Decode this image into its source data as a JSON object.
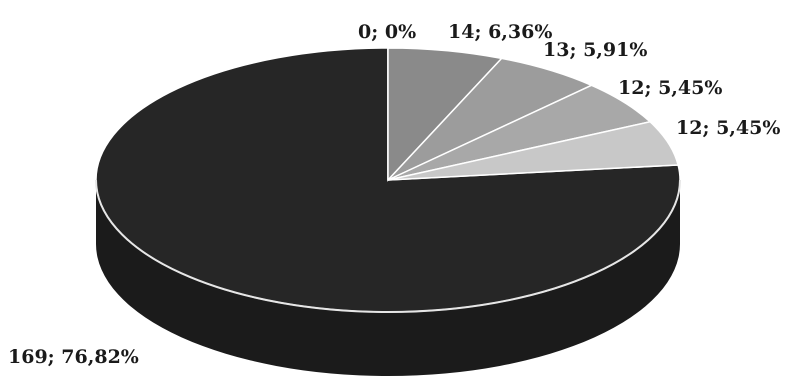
{
  "chart_data": {
    "type": "pie",
    "style": "3d",
    "slices": [
      {
        "value": 169,
        "percent": 76.82,
        "label": "169; 76,82%",
        "color": "#262626"
      },
      {
        "value": 0,
        "percent": 0,
        "label": "0; 0%",
        "color": "#808080"
      },
      {
        "value": 14,
        "percent": 6.36,
        "label": "14; 6,36%",
        "color": "#8a8a8a"
      },
      {
        "value": 13,
        "percent": 5.91,
        "label": "13; 5,91%",
        "color": "#9c9c9c"
      },
      {
        "value": 12,
        "percent": 5.45,
        "label": "12; 5,45%",
        "color": "#a8a8a8"
      },
      {
        "value": 12,
        "percent": 5.45,
        "label": "12; 5,45%",
        "color": "#c8c8c8"
      }
    ],
    "title": "",
    "legend": "none"
  }
}
